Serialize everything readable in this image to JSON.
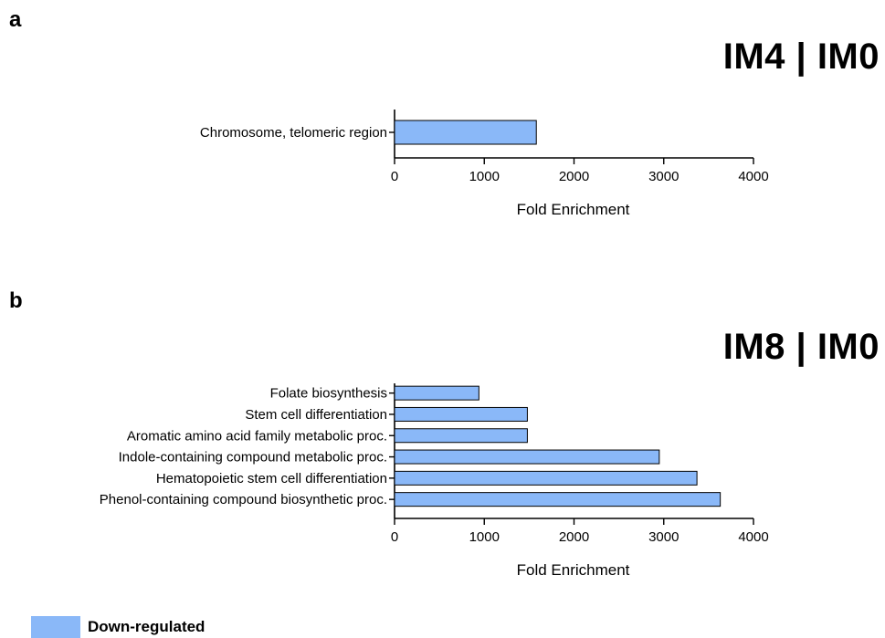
{
  "panels": [
    {
      "letter": "a",
      "title": "IM4 | IM0",
      "chart_data": {
        "type": "bar",
        "orientation": "horizontal",
        "categories": [
          "Chromosome, telomeric region"
        ],
        "values": [
          1580
        ],
        "xlabel": "Fold Enrichment",
        "xlim": [
          0,
          4000
        ],
        "xticks": [
          0,
          1000,
          2000,
          3000,
          4000
        ],
        "bar_color": "#8ab8f8",
        "grid": false
      }
    },
    {
      "letter": "b",
      "title": "IM8 | IM0",
      "chart_data": {
        "type": "bar",
        "orientation": "horizontal",
        "categories": [
          "Folate biosynthesis",
          "Stem cell differentiation",
          "Aromatic amino acid family metabolic proc.",
          "Indole-containing compound metabolic proc.",
          "Hematopoietic stem cell differentiation",
          "Phenol-containing compound biosynthetic proc."
        ],
        "values": [
          940,
          1480,
          1480,
          2950,
          3370,
          3630
        ],
        "xlabel": "Fold Enrichment",
        "xlim": [
          0,
          4000
        ],
        "xticks": [
          0,
          1000,
          2000,
          3000,
          4000
        ],
        "bar_color": "#8ab8f8",
        "grid": false
      }
    }
  ],
  "legend": {
    "label": "Down-regulated",
    "color": "#8ab8f8"
  }
}
